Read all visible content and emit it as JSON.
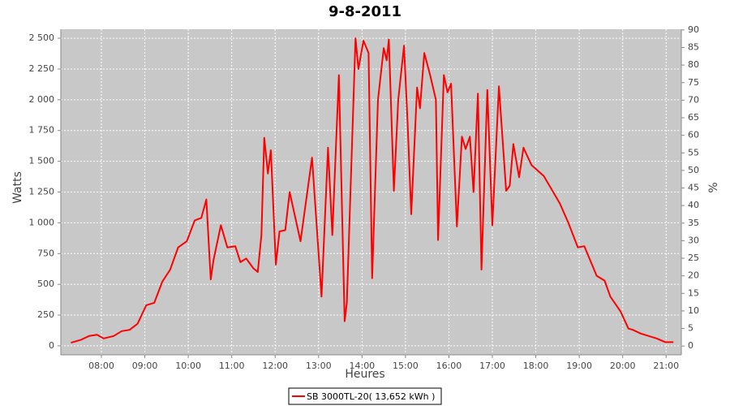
{
  "chart_data": {
    "type": "line",
    "title": "9-8-2011",
    "x_label": "Heures",
    "y_label": "Watts",
    "y2_label": "%",
    "x": [
      "07:18",
      "07:32",
      "07:43",
      "07:54",
      "08:03",
      "08:17",
      "08:28",
      "08:39",
      "08:50",
      "09:02",
      "09:13",
      "09:24",
      "09:35",
      "09:46",
      "09:58",
      "10:09",
      "10:18",
      "10:25",
      "10:31",
      "10:35",
      "10:45",
      "10:54",
      "11:05",
      "11:12",
      "11:20",
      "11:30",
      "11:36",
      "11:41",
      "11:45",
      "11:50",
      "11:54",
      "12:01",
      "12:06",
      "12:14",
      "12:20",
      "12:35",
      "12:51",
      "13:04",
      "13:13",
      "13:19",
      "13:28",
      "13:36",
      "13:39",
      "13:51",
      "13:55",
      "14:02",
      "14:09",
      "14:14",
      "14:22",
      "14:30",
      "14:34",
      "14:37",
      "14:44",
      "14:50",
      "14:58",
      "15:03",
      "15:08",
      "15:16",
      "15:20",
      "15:26",
      "15:34",
      "15:42",
      "15:45",
      "15:53",
      "15:58",
      "16:03",
      "16:11",
      "16:18",
      "16:23",
      "16:29",
      "16:34",
      "16:40",
      "16:45",
      "16:53",
      "17:00",
      "17:09",
      "17:19",
      "17:24",
      "17:29",
      "17:37",
      "17:43",
      "17:54",
      "18:11",
      "18:33",
      "18:45",
      "18:58",
      "19:07",
      "19:24",
      "19:35",
      "19:43",
      "19:57",
      "20:08",
      "20:14",
      "20:25",
      "20:36",
      "20:47",
      "20:59",
      "21:10"
    ],
    "series": [
      {
        "name": "SB 3000TL-20( 13,652 kWh )",
        "color": "#ff0000",
        "values": [
          25,
          50,
          80,
          90,
          60,
          80,
          120,
          130,
          180,
          330,
          350,
          520,
          620,
          800,
          850,
          1020,
          1040,
          1190,
          540,
          700,
          980,
          800,
          810,
          680,
          710,
          630,
          600,
          900,
          1690,
          1400,
          1590,
          660,
          930,
          940,
          1250,
          850,
          1530,
          400,
          1610,
          900,
          2200,
          200,
          350,
          2500,
          2250,
          2480,
          2380,
          550,
          2000,
          2420,
          2320,
          2490,
          1260,
          2000,
          2440,
          1800,
          1070,
          2100,
          1930,
          2380,
          2200,
          2000,
          860,
          2200,
          2060,
          2130,
          970,
          1700,
          1600,
          1700,
          1250,
          2050,
          620,
          2080,
          980,
          2110,
          1260,
          1300,
          1640,
          1370,
          1610,
          1470,
          1380,
          1160,
          1000,
          800,
          810,
          570,
          530,
          400,
          280,
          140,
          130,
          100,
          80,
          60,
          30,
          30
        ]
      }
    ],
    "xlim": [
      "07:04",
      "21:21"
    ],
    "xticks": [
      "08:00",
      "09:00",
      "10:00",
      "11:00",
      "12:00",
      "13:00",
      "14:00",
      "15:00",
      "16:00",
      "17:00",
      "18:00",
      "19:00",
      "20:00",
      "21:00"
    ],
    "ylim": [
      -73,
      2573
    ],
    "yticks": [
      0,
      250,
      500,
      750,
      {
        "value": 1000,
        "label": "1 000"
      },
      {
        "value": 1250,
        "label": "1 250"
      },
      {
        "value": 1500,
        "label": "1 500"
      },
      {
        "value": 1750,
        "label": "1 750"
      },
      {
        "value": 2000,
        "label": "2 000"
      },
      {
        "value": 2250,
        "label": "2 250"
      },
      {
        "value": 2500,
        "label": "2 500"
      }
    ],
    "y2lim": [
      -2.5,
      90.2
    ],
    "y2ticks": [
      0,
      5,
      10,
      15,
      20,
      25,
      30,
      35,
      40,
      45,
      50,
      55,
      60,
      65,
      70,
      75,
      80,
      85,
      90
    ],
    "grid": true
  }
}
